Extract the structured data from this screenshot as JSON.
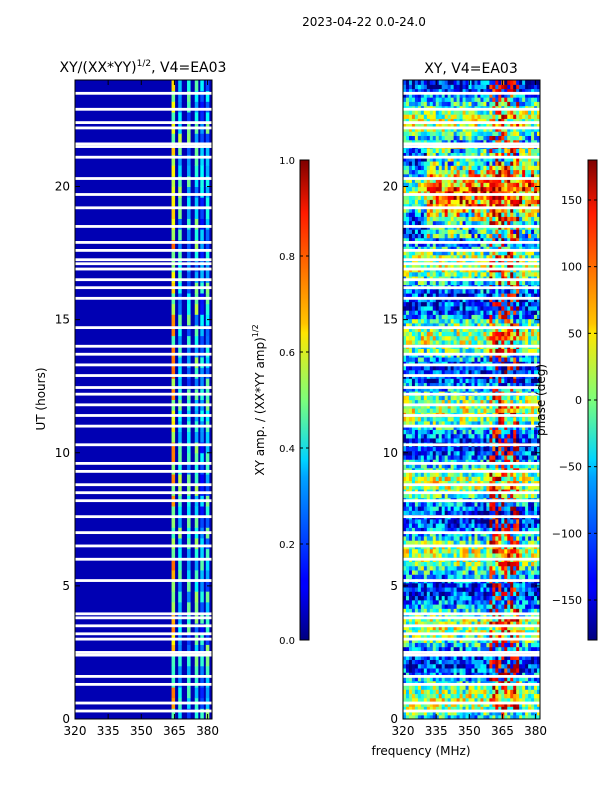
{
  "figure": {
    "suptitle": "2023-04-22 0.0-24.0"
  },
  "chart_data": [
    {
      "type": "heatmap",
      "title": "XY/(XX*YY)",
      "title_exponent": "1/2",
      "title_suffix": ", V4=EA03",
      "xlabel": "",
      "ylabel": "UT (hours)",
      "xlim": [
        320,
        382
      ],
      "ylim": [
        0,
        24
      ],
      "xticks": [
        320,
        335,
        350,
        365,
        380
      ],
      "yticks": [
        0,
        5,
        10,
        15,
        20
      ],
      "colormap": "jet",
      "colorbar": {
        "label": "XY amp. / (XX*YY amp)",
        "label_exponent": "1/2",
        "range": [
          0.0,
          1.0
        ],
        "ticks": [
          "0.0",
          "0.2",
          "0.4",
          "0.6",
          "0.8",
          "1.0"
        ]
      },
      "bright_channels_mhz": [
        364.5,
        367.5,
        371.5,
        375,
        377.5,
        380
      ],
      "bright_channel_values": [
        0.6,
        0.4,
        0.35,
        0.4,
        0.3,
        0.35
      ],
      "background_value": 0.05,
      "flagged_hours": [
        0.3,
        0.6,
        1.3,
        1.6,
        2.4,
        2.5,
        3.0,
        3.2,
        3.5,
        3.8,
        3.95,
        5.2,
        6.0,
        6.5,
        7.0,
        7.6,
        8.2,
        8.5,
        8.8,
        9.3,
        9.6,
        10.3,
        11.0,
        11.4,
        11.8,
        12.2,
        12.45,
        12.9,
        13.3,
        13.7,
        14.0,
        14.7,
        15.8,
        16.2,
        16.5,
        16.9,
        17.1,
        17.25,
        17.6,
        17.9,
        18.5,
        19.2,
        19.7,
        20.3,
        21.1,
        21.5,
        21.6,
        22.2,
        22.4,
        22.9,
        23.5
      ]
    },
    {
      "type": "heatmap",
      "title": "XY, V4=EA03",
      "xlabel": "frequency (MHz)",
      "ylabel": "",
      "xlim": [
        320,
        382
      ],
      "ylim": [
        0,
        24
      ],
      "xticks": [
        320,
        335,
        350,
        365,
        380
      ],
      "yticks": [
        0,
        5,
        10,
        15,
        20
      ],
      "colormap": "jet",
      "colorbar": {
        "label": "phase (deg)",
        "range": [
          -180,
          180
        ],
        "ticks": [
          "150",
          "100",
          "50",
          "0",
          "−50",
          "−100",
          "−150"
        ]
      },
      "flagged_hours": [
        0.3,
        0.6,
        1.3,
        1.6,
        2.4,
        2.5,
        3.0,
        3.2,
        3.5,
        3.8,
        3.95,
        5.2,
        6.0,
        6.5,
        7.0,
        7.6,
        8.2,
        8.5,
        8.8,
        9.3,
        9.6,
        10.3,
        11.0,
        11.4,
        11.8,
        12.2,
        12.45,
        12.9,
        13.3,
        13.7,
        14.0,
        14.7,
        15.8,
        16.2,
        16.5,
        16.9,
        17.1,
        17.25,
        17.6,
        17.9,
        18.5,
        19.2,
        19.7,
        20.3,
        21.1,
        21.5,
        21.6,
        22.2,
        22.4,
        22.9,
        23.5
      ]
    }
  ]
}
